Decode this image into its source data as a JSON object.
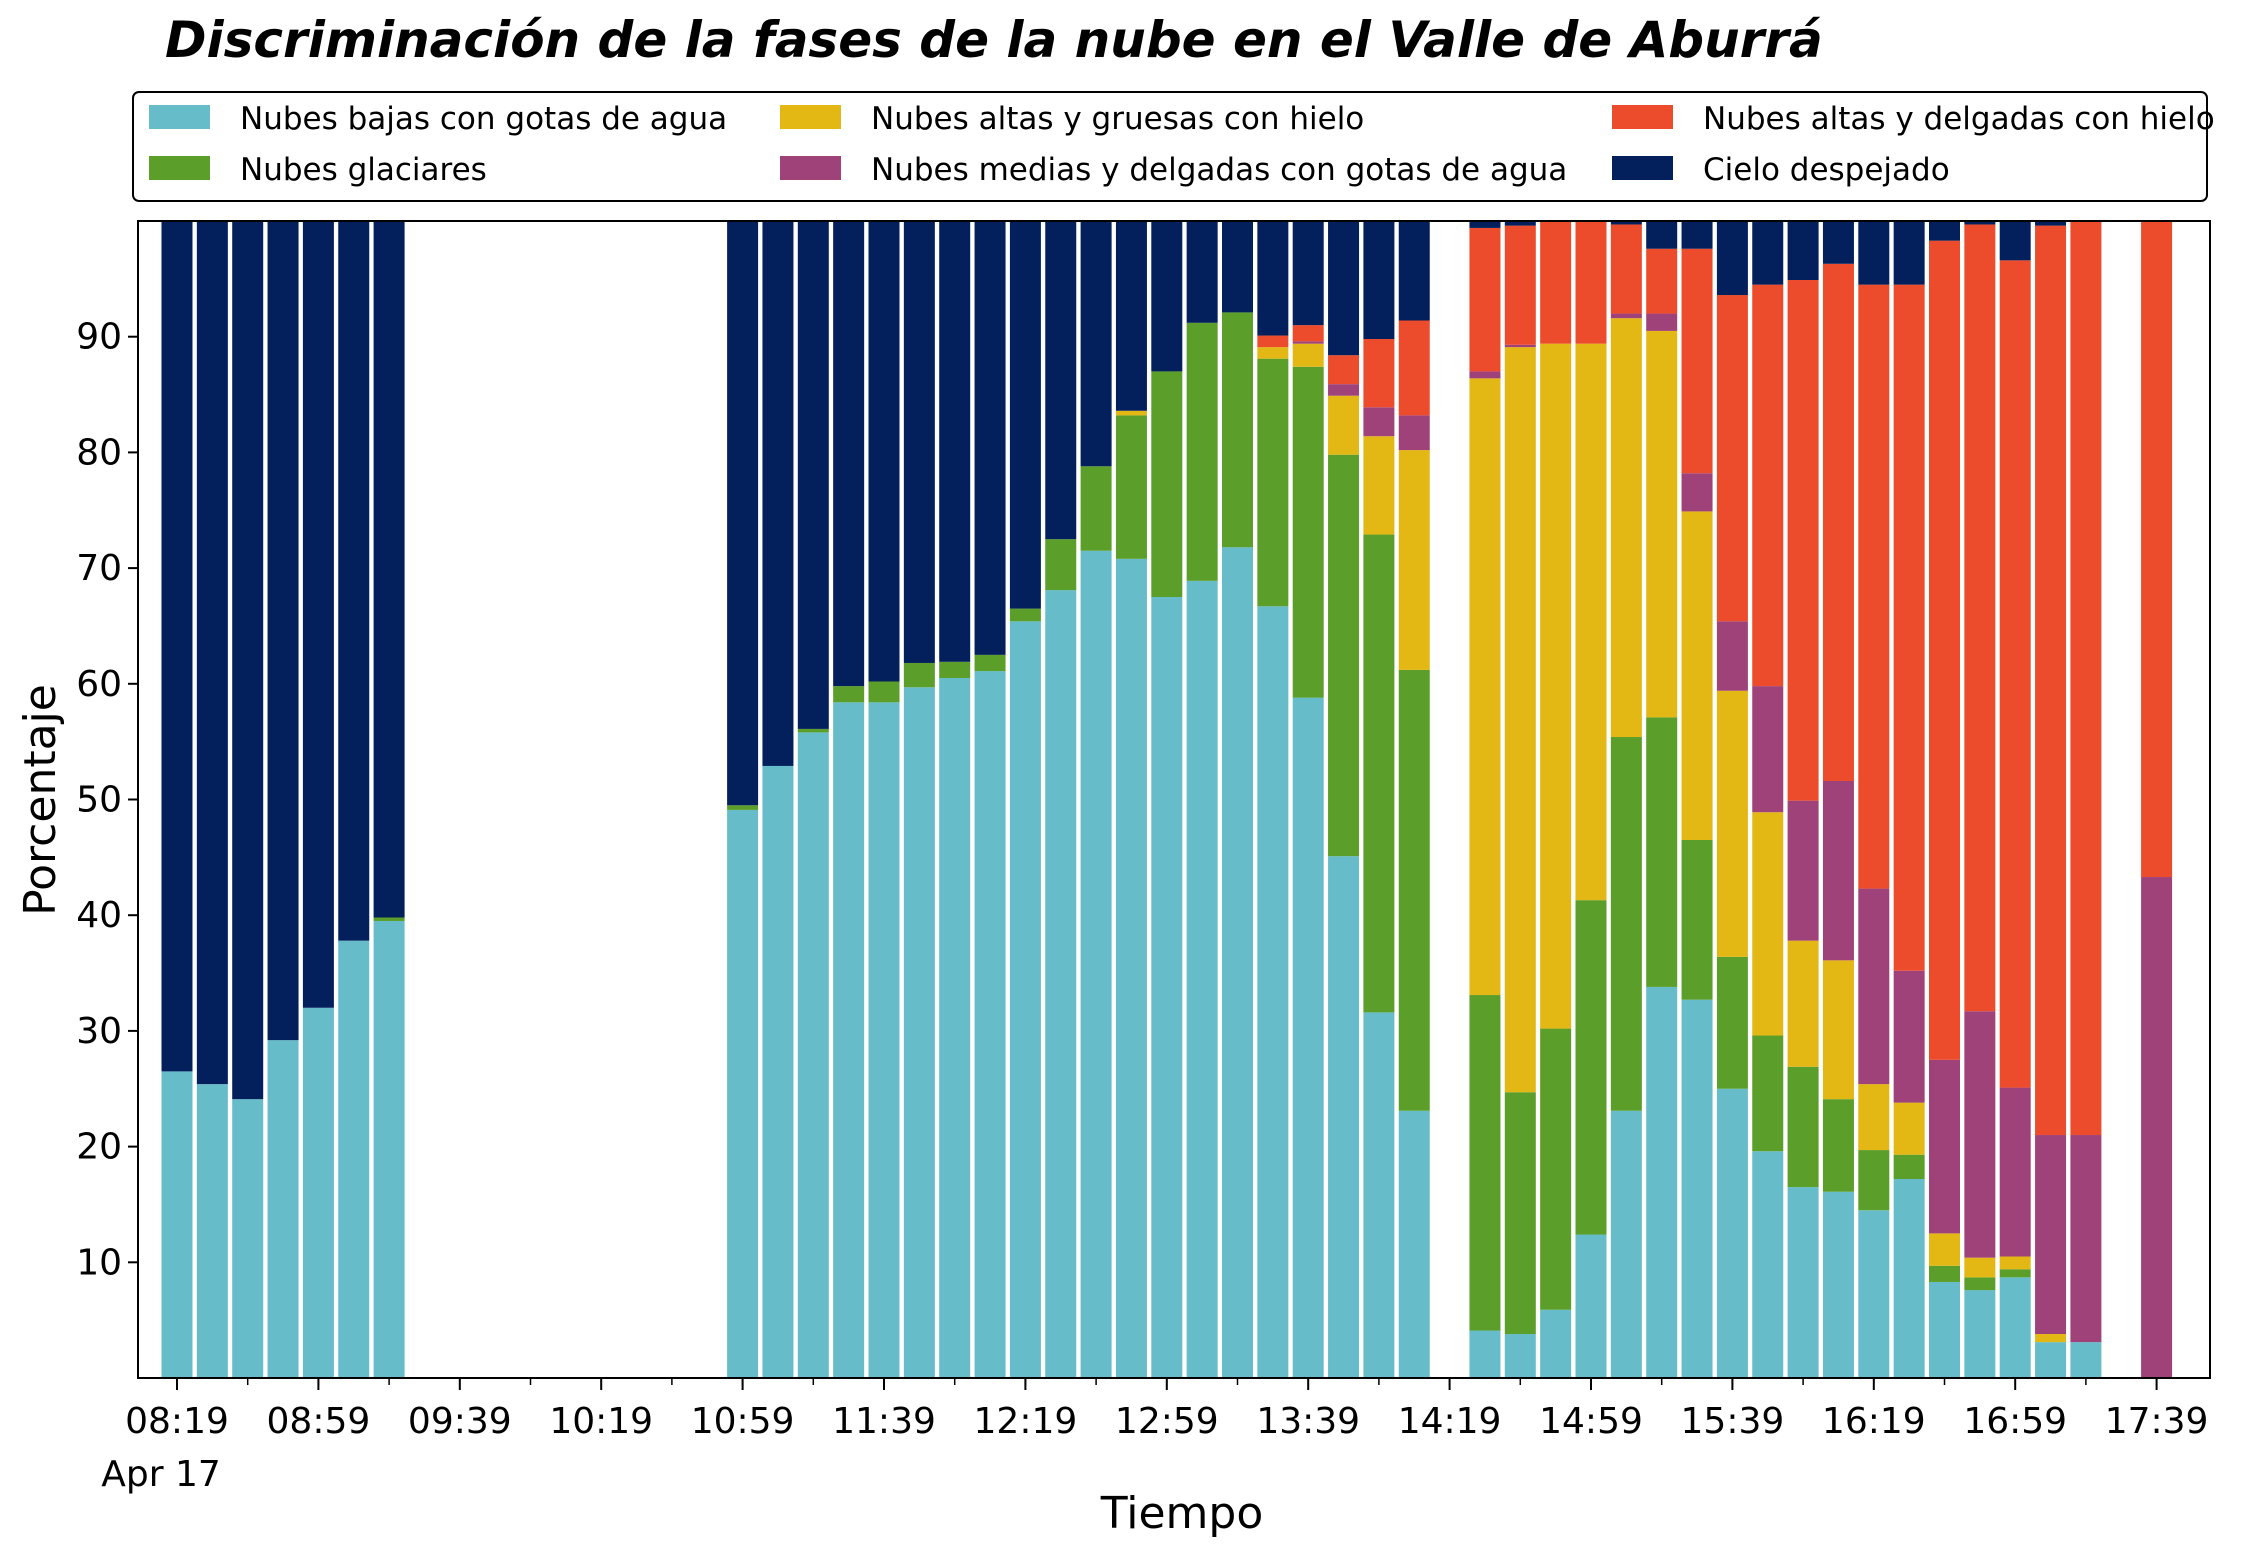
{
  "chart_data": {
    "type": "bar",
    "stacked": true,
    "title": "Discriminación de la fases de la nube en el Valle de Aburrá",
    "xlabel": "Tiempo",
    "ylabel": "Porcentaje",
    "ylim": [
      0,
      100
    ],
    "yticks": [
      10,
      20,
      30,
      40,
      50,
      60,
      70,
      80,
      90
    ],
    "x_start": "08:19",
    "x_interval_minutes": 10,
    "x_slots": 59,
    "xtick_labels": [
      "08:19",
      "08:59",
      "09:39",
      "10:19",
      "10:59",
      "11:39",
      "12:19",
      "12:59",
      "13:39",
      "14:19",
      "14:59",
      "15:39",
      "16:19",
      "16:59",
      "17:39"
    ],
    "xtick_slot_index": [
      0,
      4,
      8,
      12,
      16,
      20,
      24,
      28,
      32,
      36,
      40,
      44,
      48,
      52,
      56
    ],
    "xtick_secondary_label": "Apr 17",
    "legend": {
      "position": "top",
      "columns": 3
    },
    "grid": false,
    "series": [
      {
        "name": "Nubes bajas con gotas de agua",
        "color": "#66bdc9"
      },
      {
        "name": "Nubes glaciares",
        "color": "#5b9e29"
      },
      {
        "name": "Nubes altas y gruesas con hielo",
        "color": "#e3b714"
      },
      {
        "name": "Nubes medias y delgadas con gotas de agua",
        "color": "#a0427a"
      },
      {
        "name": "Nubes altas y delgadas con hielo",
        "color": "#ec4b2c"
      },
      {
        "name": "Cielo despejado",
        "color": "#04205c"
      }
    ],
    "bars": [
      {
        "time": "08:19",
        "values": [
          26.5,
          0,
          0,
          0,
          0,
          73.5
        ]
      },
      {
        "time": "08:29",
        "values": [
          25.4,
          0,
          0,
          0,
          0,
          74.6
        ]
      },
      {
        "time": "08:39",
        "values": [
          24.1,
          0,
          0,
          0,
          0,
          75.9
        ]
      },
      {
        "time": "08:49",
        "values": [
          29.2,
          0,
          0,
          0,
          0,
          70.8
        ]
      },
      {
        "time": "08:59",
        "values": [
          32.0,
          0,
          0,
          0,
          0,
          68.0
        ]
      },
      {
        "time": "09:09",
        "values": [
          37.8,
          0,
          0,
          0,
          0,
          62.2
        ]
      },
      {
        "time": "09:19",
        "values": [
          39.5,
          0.3,
          0,
          0,
          0,
          60.2
        ]
      },
      {
        "time": "10:59",
        "values": [
          49.1,
          0.4,
          0,
          0,
          0,
          50.5
        ]
      },
      {
        "time": "11:09",
        "values": [
          52.9,
          0,
          0,
          0,
          0,
          47.1
        ]
      },
      {
        "time": "11:19",
        "values": [
          55.8,
          0.3,
          0,
          0,
          0,
          43.9
        ]
      },
      {
        "time": "11:29",
        "values": [
          58.4,
          1.4,
          0,
          0,
          0,
          40.2
        ]
      },
      {
        "time": "11:39",
        "values": [
          58.4,
          1.8,
          0,
          0,
          0,
          39.8
        ]
      },
      {
        "time": "11:49",
        "values": [
          59.7,
          2.1,
          0,
          0,
          0,
          38.2
        ]
      },
      {
        "time": "11:59",
        "values": [
          60.5,
          1.4,
          0,
          0,
          0,
          38.1
        ]
      },
      {
        "time": "12:09",
        "values": [
          61.1,
          1.4,
          0,
          0,
          0,
          37.5
        ]
      },
      {
        "time": "12:19",
        "values": [
          65.4,
          1.1,
          0,
          0,
          0,
          33.5
        ]
      },
      {
        "time": "12:29",
        "values": [
          68.1,
          4.4,
          0,
          0,
          0,
          27.5
        ]
      },
      {
        "time": "12:39",
        "values": [
          71.5,
          7.3,
          0,
          0,
          0,
          21.2
        ]
      },
      {
        "time": "12:49",
        "values": [
          70.8,
          12.4,
          0.4,
          0,
          0,
          16.4
        ]
      },
      {
        "time": "12:59",
        "values": [
          67.5,
          19.5,
          0,
          0,
          0,
          13.0
        ]
      },
      {
        "time": "13:09",
        "values": [
          68.9,
          22.3,
          0,
          0,
          0,
          8.8
        ]
      },
      {
        "time": "13:19",
        "values": [
          71.8,
          20.3,
          0,
          0,
          0,
          7.9
        ]
      },
      {
        "time": "13:29",
        "values": [
          66.7,
          21.4,
          1.0,
          0,
          1.0,
          9.9
        ]
      },
      {
        "time": "13:39",
        "values": [
          58.8,
          28.6,
          2.0,
          0.2,
          1.4,
          9.0
        ]
      },
      {
        "time": "13:49",
        "values": [
          45.1,
          34.7,
          5.1,
          1.0,
          2.5,
          11.6
        ]
      },
      {
        "time": "13:59",
        "values": [
          31.6,
          41.3,
          8.5,
          2.5,
          5.9,
          10.2
        ]
      },
      {
        "time": "14:09",
        "values": [
          23.1,
          38.1,
          19.0,
          3.0,
          8.2,
          8.6
        ]
      },
      {
        "time": "14:29",
        "values": [
          4.1,
          29.0,
          53.3,
          0.6,
          12.4,
          0.6
        ]
      },
      {
        "time": "14:39",
        "values": [
          3.8,
          20.9,
          64.4,
          0.2,
          10.3,
          0.4
        ]
      },
      {
        "time": "14:49",
        "values": [
          5.9,
          24.3,
          59.2,
          0,
          10.6,
          0
        ]
      },
      {
        "time": "14:59",
        "values": [
          12.4,
          28.9,
          48.1,
          0,
          10.6,
          0
        ]
      },
      {
        "time": "15:09",
        "values": [
          23.1,
          32.3,
          36.2,
          0.4,
          7.7,
          0.3
        ]
      },
      {
        "time": "15:19",
        "values": [
          33.8,
          23.3,
          33.4,
          1.5,
          5.6,
          2.4
        ]
      },
      {
        "time": "15:29",
        "values": [
          32.7,
          13.8,
          28.4,
          3.3,
          19.4,
          2.4
        ]
      },
      {
        "time": "15:39",
        "values": [
          25.0,
          11.4,
          23.0,
          6.0,
          28.2,
          6.4
        ]
      },
      {
        "time": "15:49",
        "values": [
          19.6,
          10.0,
          19.3,
          10.9,
          34.7,
          5.5
        ]
      },
      {
        "time": "15:59",
        "values": [
          16.5,
          10.4,
          10.9,
          12.1,
          45.0,
          5.1
        ]
      },
      {
        "time": "16:09",
        "values": [
          16.1,
          8.0,
          12.0,
          15.5,
          44.7,
          3.7
        ]
      },
      {
        "time": "16:19",
        "values": [
          14.5,
          5.2,
          5.7,
          16.9,
          52.2,
          5.5
        ]
      },
      {
        "time": "16:29",
        "values": [
          17.2,
          2.1,
          4.5,
          11.4,
          59.3,
          5.5
        ]
      },
      {
        "time": "16:39",
        "values": [
          8.3,
          1.4,
          2.8,
          15.0,
          70.8,
          1.7
        ]
      },
      {
        "time": "16:49",
        "values": [
          7.6,
          1.1,
          1.7,
          21.3,
          68.0,
          0.3
        ]
      },
      {
        "time": "16:59",
        "values": [
          8.7,
          0.7,
          1.1,
          14.6,
          71.5,
          3.4
        ]
      },
      {
        "time": "17:09",
        "values": [
          3.1,
          0,
          0.7,
          17.2,
          78.6,
          0.4
        ]
      },
      {
        "time": "17:19",
        "values": [
          3.1,
          0,
          0,
          17.9,
          79.0,
          0
        ]
      },
      {
        "time": "17:39",
        "values": [
          0,
          0,
          0,
          43.3,
          56.7,
          0
        ]
      }
    ]
  }
}
